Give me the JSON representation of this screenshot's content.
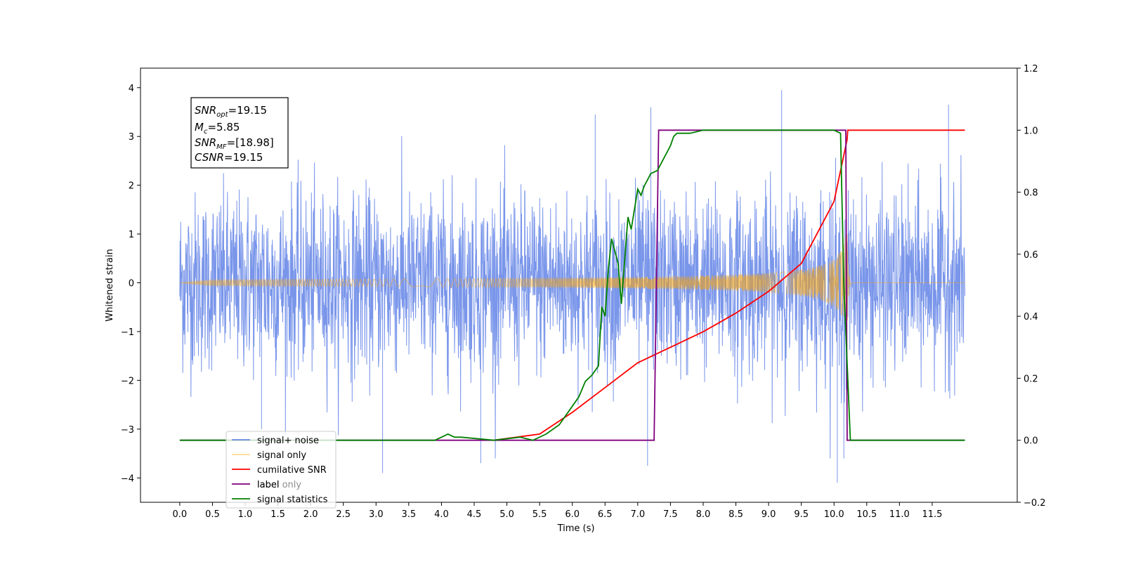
{
  "chart_data": {
    "type": "line",
    "xlabel": "Time (s)",
    "ylabel": "Whitened strain",
    "xlim": [
      -0.6,
      12.8
    ],
    "ylim": [
      -4.5,
      4.4
    ],
    "y2lim": [
      -0.2,
      1.2
    ],
    "x_ticks": [
      "0.0",
      "0.5",
      "1.0",
      "1.5",
      "2.0",
      "2.5",
      "3.0",
      "3.5",
      "4.0",
      "4.5",
      "5.0",
      "5.5",
      "6.0",
      "6.5",
      "7.0",
      "7.5",
      "8.0",
      "8.5",
      "9.0",
      "9.5",
      "10.0",
      "10.5",
      "11.0",
      "11.5"
    ],
    "y_ticks": [
      "4",
      "3",
      "2",
      "1",
      "0",
      "−1",
      "−2",
      "−3",
      "−4"
    ],
    "y2_ticks": [
      "1.2",
      "1.0",
      "0.8",
      "0.6",
      "0.4",
      "0.2",
      "0.0",
      "−0.2"
    ],
    "annotation": {
      "snr_opt": "=19.15",
      "mc": "=5.85",
      "snr_mf": "=[18.98]",
      "csnr": "=19.15"
    },
    "legend": {
      "placement": "lower-left",
      "entries": [
        {
          "label": "signal+ noise",
          "color": "#4169e1"
        },
        {
          "label": "signal only",
          "color": "#ffa500"
        },
        {
          "label": "cumilative SNR",
          "color": "#ff0000"
        },
        {
          "label": "label",
          "color": "#800080"
        },
        {
          "label": "signal statistics",
          "color": "#008000"
        }
      ]
    },
    "legend_overlap_text": "label only",
    "series": [
      {
        "name": "signal+ noise",
        "axis": "left",
        "color": "#4169e1",
        "description": "whitened noise, approx. ±2 strain, spikes to ±4, t = 0 to 12 s",
        "t_start": 0.0,
        "t_end": 12.0,
        "amplitude_std": 0.9,
        "spikes": [
          [
            1.25,
            -3.0
          ],
          [
            3.1,
            -3.9
          ],
          [
            4.6,
            -3.7
          ],
          [
            6.35,
            3.45
          ],
          [
            7.15,
            -3.75
          ],
          [
            7.2,
            3.6
          ],
          [
            9.2,
            3.95
          ],
          [
            10.05,
            -4.1
          ],
          [
            10.15,
            -3.6
          ],
          [
            11.75,
            3.65
          ]
        ]
      },
      {
        "name": "signal only",
        "axis": "left",
        "color": "#ffa500",
        "description": "chirp, amplitude grows from ~0 to ~1.2 at merger t ≈ 10.2 s",
        "merger_time": 10.2,
        "peak_amplitude": 1.2
      },
      {
        "name": "cumilative SNR",
        "axis": "right",
        "color": "#ff0000",
        "x": [
          4.8,
          5.5,
          6.0,
          6.5,
          7.0,
          7.5,
          8.0,
          8.5,
          9.0,
          9.5,
          10.0,
          10.2,
          10.21,
          12.0
        ],
        "y": [
          0.0,
          0.02,
          0.09,
          0.17,
          0.25,
          0.3,
          0.35,
          0.41,
          0.48,
          0.57,
          0.77,
          0.97,
          1.0,
          1.0
        ]
      },
      {
        "name": "label",
        "axis": "right",
        "color": "#800080",
        "x": [
          0.0,
          7.25,
          7.32,
          10.18,
          10.2,
          12.0
        ],
        "y": [
          0.0,
          0.0,
          1.0,
          1.0,
          0.0,
          0.0
        ]
      },
      {
        "name": "signal statistics",
        "axis": "right",
        "color": "#008000",
        "x": [
          0.0,
          3.9,
          4.1,
          4.2,
          4.3,
          4.8,
          5.2,
          5.4,
          5.6,
          5.8,
          6.0,
          6.1,
          6.2,
          6.3,
          6.4,
          6.45,
          6.5,
          6.55,
          6.6,
          6.7,
          6.75,
          6.85,
          6.9,
          7.0,
          7.05,
          7.1,
          7.15,
          7.2,
          7.3,
          7.5,
          7.55,
          7.6,
          7.8,
          8.0,
          8.5,
          9.0,
          9.5,
          10.0,
          10.1,
          10.15,
          10.25,
          12.0
        ],
        "y": [
          0.0,
          0.0,
          0.02,
          0.01,
          0.01,
          0.0,
          0.01,
          0.0,
          0.02,
          0.05,
          0.11,
          0.14,
          0.19,
          0.21,
          0.24,
          0.43,
          0.4,
          0.55,
          0.65,
          0.57,
          0.44,
          0.72,
          0.68,
          0.81,
          0.79,
          0.82,
          0.84,
          0.86,
          0.87,
          0.95,
          0.98,
          0.99,
          0.99,
          1.0,
          1.0,
          1.0,
          1.0,
          1.0,
          0.99,
          0.5,
          0.0,
          0.0
        ]
      }
    ]
  }
}
